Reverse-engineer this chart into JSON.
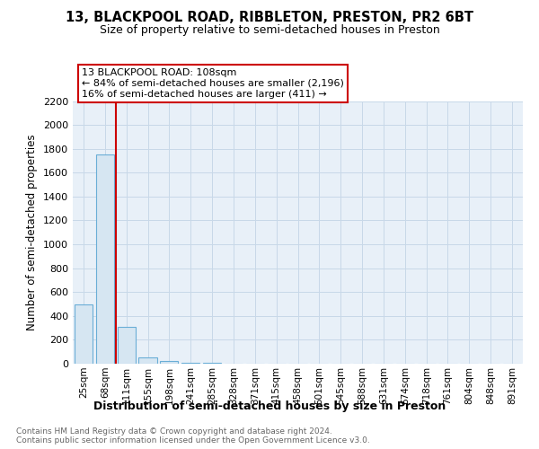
{
  "title": "13, BLACKPOOL ROAD, RIBBLETON, PRESTON, PR2 6BT",
  "subtitle": "Size of property relative to semi-detached houses in Preston",
  "xlabel": "Distribution of semi-detached houses by size in Preston",
  "ylabel": "Number of semi-detached properties",
  "footnote": "Contains HM Land Registry data © Crown copyright and database right 2024.\nContains public sector information licensed under the Open Government Licence v3.0.",
  "annotation_title": "13 BLACKPOOL ROAD: 108sqm",
  "annotation_line2": "← 84% of semi-detached houses are smaller (2,196)",
  "annotation_line3": "16% of semi-detached houses are larger (411) →",
  "highlight_bin": 1,
  "categories": [
    "25sqm",
    "68sqm",
    "111sqm",
    "155sqm",
    "198sqm",
    "241sqm",
    "285sqm",
    "328sqm",
    "371sqm",
    "415sqm",
    "458sqm",
    "501sqm",
    "545sqm",
    "588sqm",
    "631sqm",
    "674sqm",
    "718sqm",
    "761sqm",
    "804sqm",
    "848sqm",
    "891sqm"
  ],
  "values": [
    500,
    1750,
    305,
    50,
    20,
    5,
    5,
    0,
    0,
    0,
    0,
    0,
    0,
    0,
    0,
    0,
    0,
    0,
    0,
    0,
    0
  ],
  "bar_color": "#d6e6f2",
  "bar_edge_color": "#6aaed6",
  "redline_color": "#cc0000",
  "grid_color": "#c8d8e8",
  "background_color": "#ffffff",
  "plot_bg_color": "#e8f0f8",
  "ylim": [
    0,
    2200
  ],
  "yticks": [
    0,
    200,
    400,
    600,
    800,
    1000,
    1200,
    1400,
    1600,
    1800,
    2000,
    2200
  ]
}
